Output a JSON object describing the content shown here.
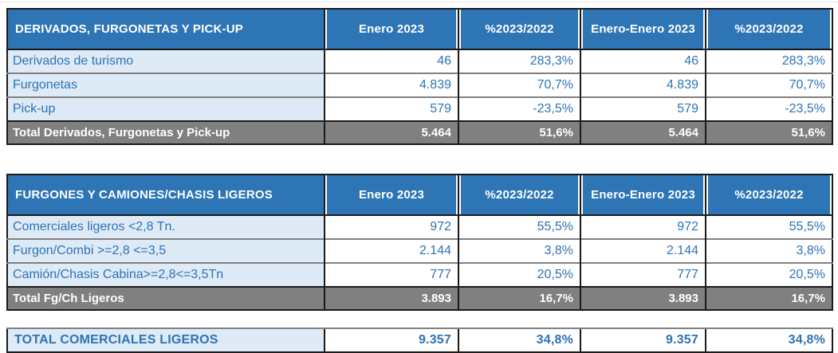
{
  "chart_data": {
    "type": "table",
    "columns": [
      "Enero 2023",
      "%2023/2022",
      "Enero-Enero 2023",
      "%2023/2022"
    ],
    "tables": [
      {
        "title": "DERIVADOS, FURGONETAS Y PICK-UP",
        "rows": [
          {
            "label": "Derivados de turismo",
            "values": [
              "46",
              "283,3%",
              "46",
              "283,3%"
            ]
          },
          {
            "label": "Furgonetas",
            "values": [
              "4.839",
              "70,7%",
              "4.839",
              "70,7%"
            ]
          },
          {
            "label": "Pick-up",
            "values": [
              "579",
              "-23,5%",
              "579",
              "-23,5%"
            ]
          }
        ],
        "total": {
          "label": "Total Derivados, Furgonetas y Pick-up",
          "values": [
            "5.464",
            "51,6%",
            "5.464",
            "51,6%"
          ]
        }
      },
      {
        "title": "FURGONES Y CAMIONES/CHASIS LIGEROS",
        "rows": [
          {
            "label": "Comerciales ligeros <2,8 Tn.",
            "values": [
              "972",
              "55,5%",
              "972",
              "55,5%"
            ]
          },
          {
            "label": "Furgon/Combi >=2,8 <=3,5",
            "values": [
              "2.144",
              "3,8%",
              "2.144",
              "3,8%"
            ]
          },
          {
            "label": "Camión/Chasis Cabina>=2,8<=3,5Tn",
            "values": [
              "777",
              "20,5%",
              "777",
              "20,5%"
            ]
          }
        ],
        "total": {
          "label": "Total Fg/Ch Ligeros",
          "values": [
            "3.893",
            "16,7%",
            "3.893",
            "16,7%"
          ]
        }
      }
    ],
    "grand_total": {
      "label": "TOTAL COMERCIALES LIGEROS",
      "values": [
        "9.357",
        "34,8%",
        "9.357",
        "34,8%"
      ]
    }
  },
  "colors": {
    "header_bg": "#2E75B6",
    "header_text": "#FFFFFF",
    "row_label_bg": "#DEEAF6",
    "data_text": "#2E74B5",
    "total_bg": "#808080",
    "total_text": "#FFFFFF",
    "band_bg": "#21496B",
    "band_text": "#FFFFFF",
    "border_dark": "#1A1A1A",
    "border_gray": "#808080"
  }
}
